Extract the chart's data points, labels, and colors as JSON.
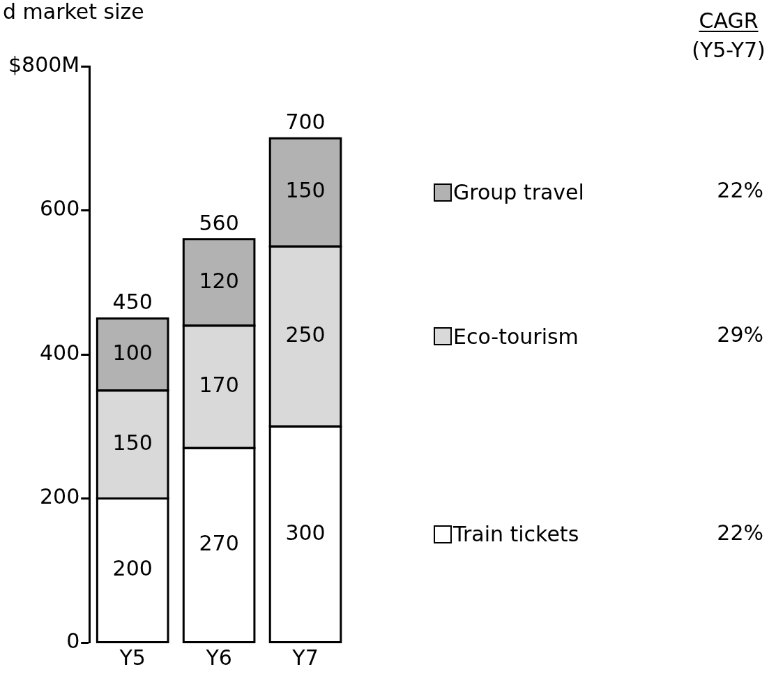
{
  "chart_data": {
    "type": "bar",
    "title": "d market size",
    "categories": [
      "Y5",
      "Y6",
      "Y7"
    ],
    "stacked": true,
    "series": [
      {
        "name": "Train tickets",
        "color": "#ffffff",
        "values": [
          200,
          270,
          300
        ]
      },
      {
        "name": "Eco-tourism",
        "color": "#d9d9d9",
        "values": [
          150,
          170,
          250
        ]
      },
      {
        "name": "Group travel",
        "color": "#b2b2b2",
        "values": [
          100,
          120,
          150
        ]
      }
    ],
    "ylim": [
      0,
      800
    ],
    "yticks": [
      0,
      200,
      400,
      600,
      {
        "value": 800,
        "label": "$800M"
      }
    ],
    "grid": false,
    "legend": "right",
    "data_labels": true,
    "totals": [
      "450",
      "560",
      "700"
    ],
    "annotations": [
      "CAGR",
      "(Y5-Y7)",
      "22%",
      "29%",
      "22%"
    ]
  }
}
